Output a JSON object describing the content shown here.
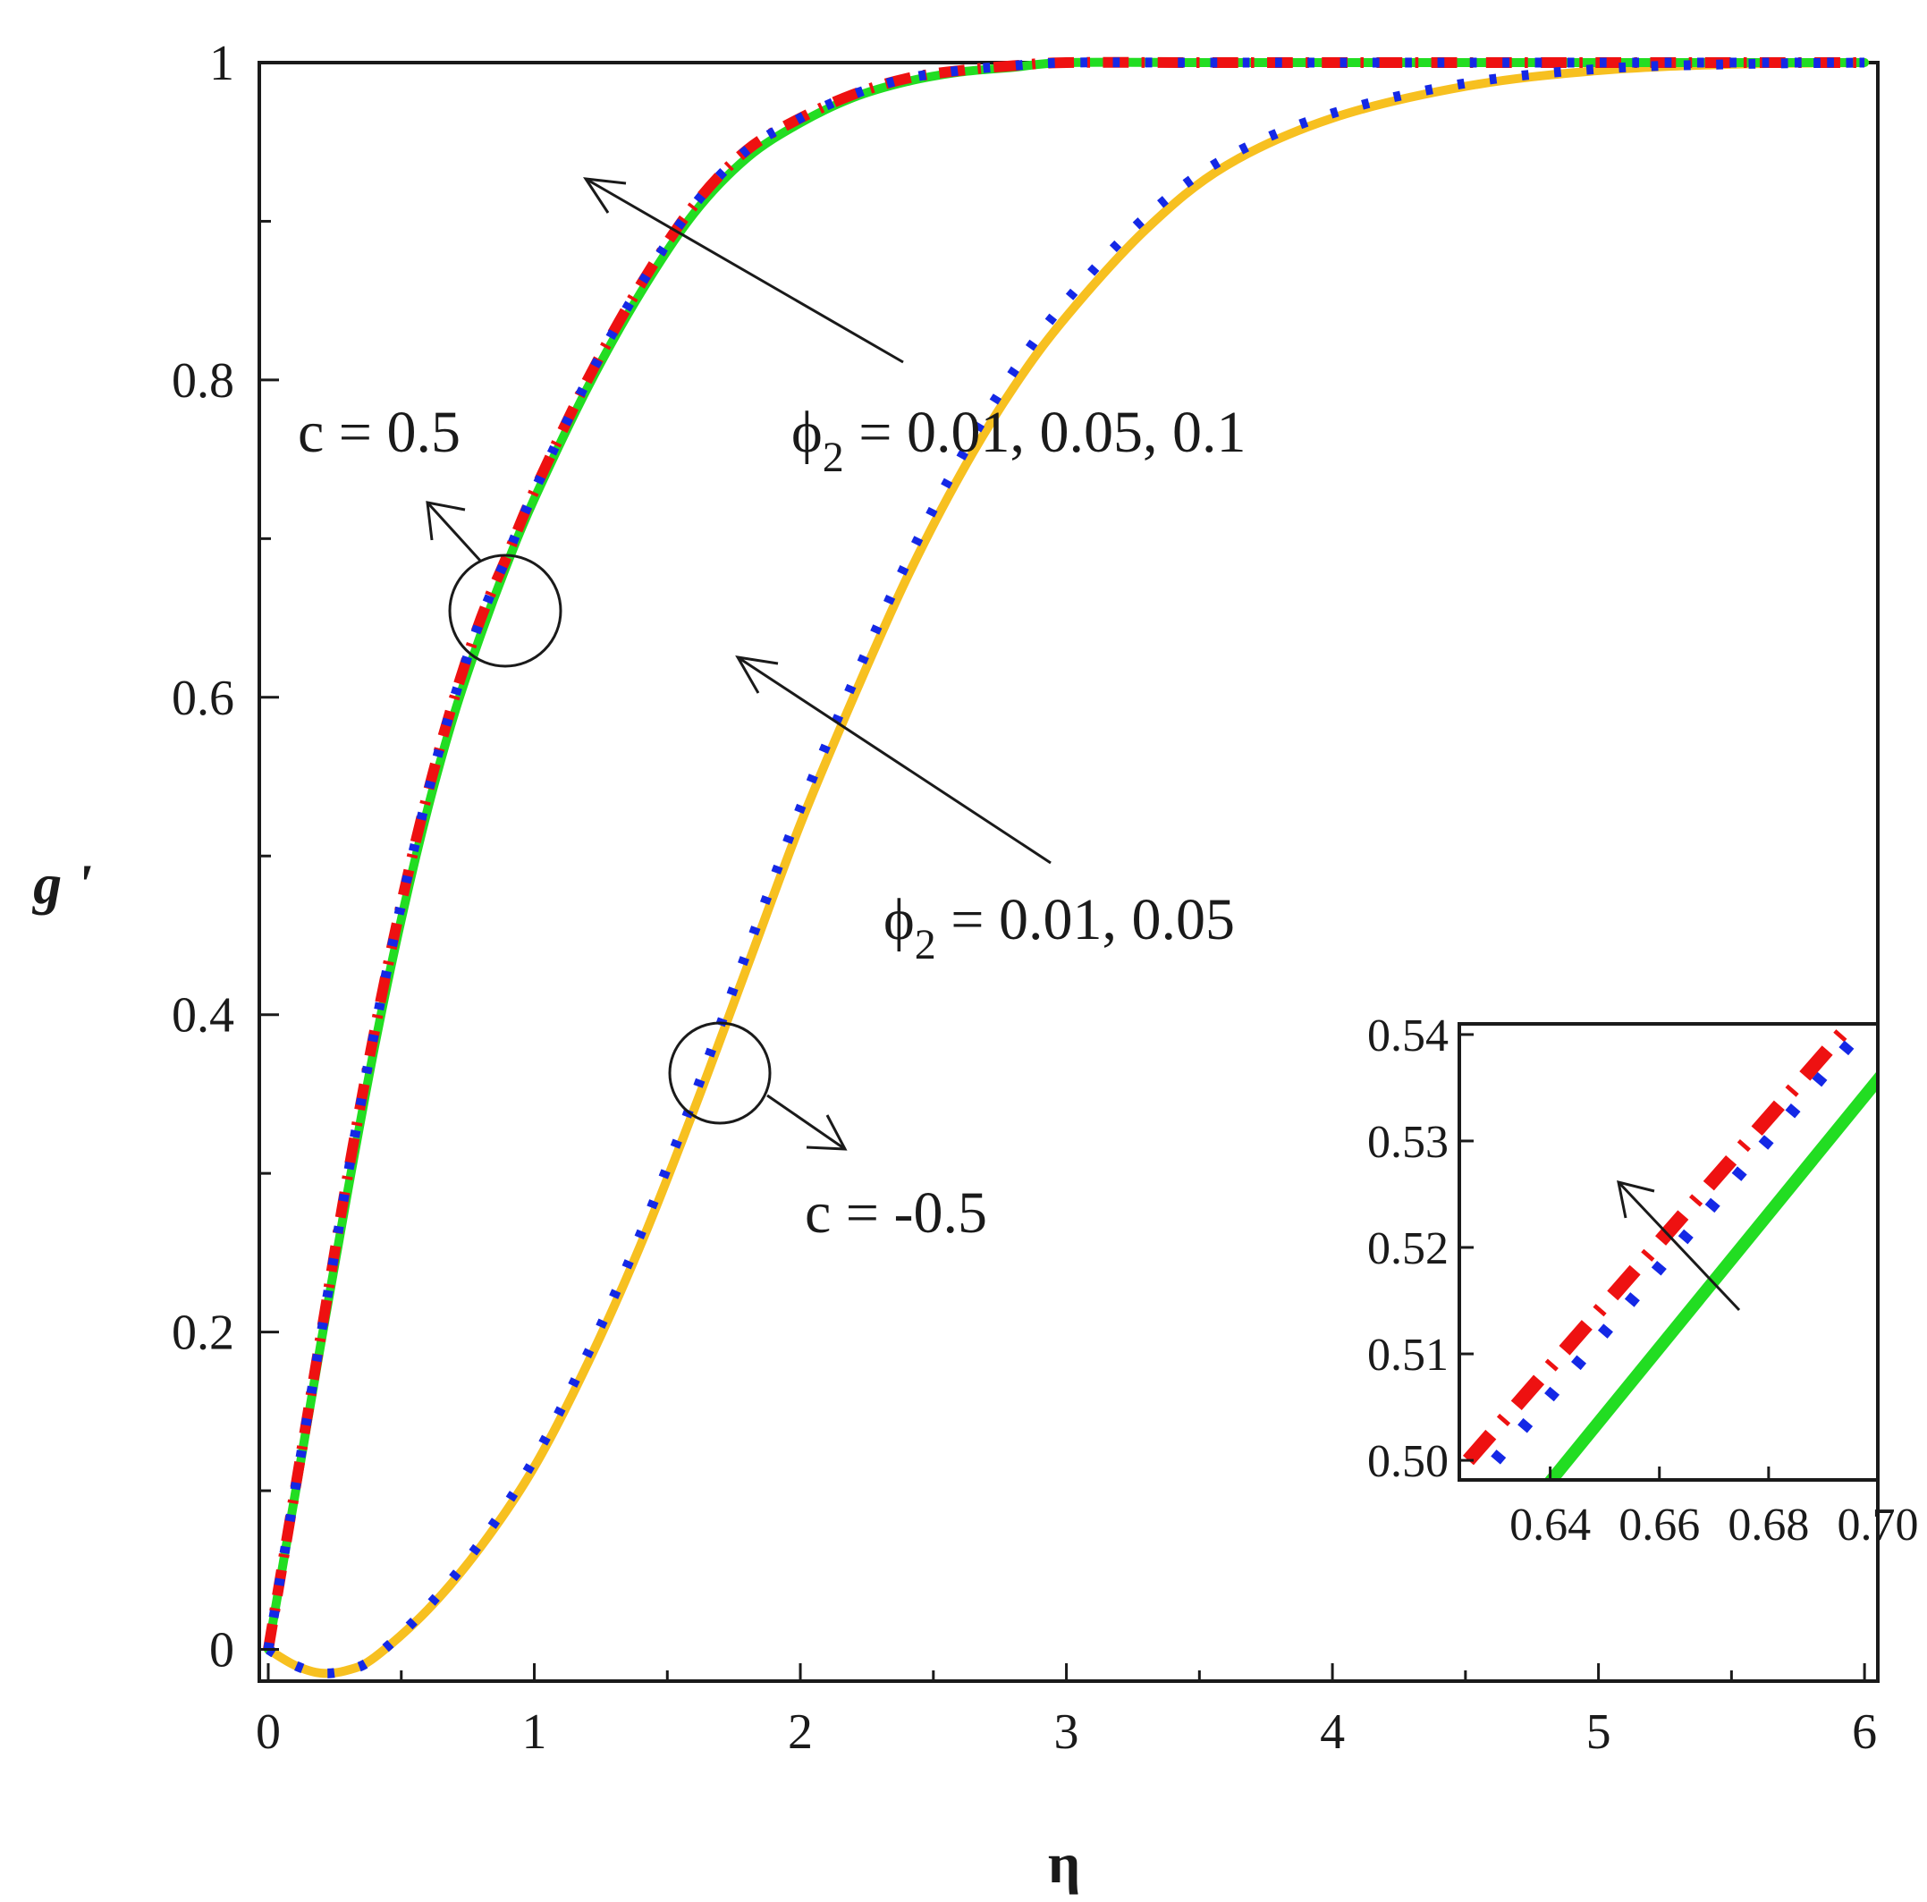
{
  "chart_data": {
    "type": "line",
    "title": "",
    "xlabel": "η",
    "ylabel": "g '",
    "xlim": [
      0,
      6.05
    ],
    "ylim": [
      -0.02,
      1.0
    ],
    "xticks": [
      "0",
      "1",
      "2",
      "3",
      "4",
      "5",
      "6"
    ],
    "yticks": [
      "0",
      "0.2",
      "0.4",
      "0.6",
      "0.8",
      "1"
    ],
    "grid": false,
    "colors": {
      "red": "#ee1111",
      "blue": "#1428e6",
      "green": "#22dd22",
      "yellow": "#f7c020",
      "black": "#1a1a1a"
    },
    "series": [
      {
        "group": "c = 0.5",
        "color": "#ee1111",
        "style": "dashdot",
        "x": [
          0,
          0.1,
          0.2,
          0.3,
          0.4,
          0.5,
          0.6,
          0.7,
          0.8,
          0.9,
          1.0,
          1.2,
          1.4,
          1.6,
          1.8,
          2.0,
          2.2,
          2.4,
          2.6,
          2.8,
          3.0,
          3.5,
          4.0,
          5.0,
          6.0
        ],
        "y": [
          0,
          0.1,
          0.2,
          0.3,
          0.39,
          0.47,
          0.54,
          0.6,
          0.65,
          0.69,
          0.73,
          0.8,
          0.86,
          0.91,
          0.945,
          0.965,
          0.98,
          0.99,
          0.995,
          0.998,
          1.0,
          1.0,
          1.0,
          1.0,
          1.0
        ]
      },
      {
        "group": "c = 0.5",
        "color": "#1428e6",
        "style": "dotted",
        "x": [
          0,
          0.1,
          0.2,
          0.3,
          0.4,
          0.5,
          0.6,
          0.7,
          0.8,
          0.9,
          1.0,
          1.2,
          1.4,
          1.6,
          1.8,
          2.0,
          2.2,
          2.4,
          2.6,
          2.8,
          3.0,
          3.5,
          4.0,
          5.0,
          6.0
        ],
        "y": [
          0,
          0.1,
          0.2,
          0.3,
          0.39,
          0.47,
          0.54,
          0.6,
          0.65,
          0.69,
          0.73,
          0.8,
          0.86,
          0.91,
          0.945,
          0.965,
          0.98,
          0.99,
          0.995,
          0.998,
          1.0,
          1.0,
          1.0,
          1.0,
          1.0
        ]
      },
      {
        "group": "c = 0.5",
        "color": "#22dd22",
        "style": "solid",
        "x": [
          0,
          0.1,
          0.2,
          0.3,
          0.4,
          0.5,
          0.6,
          0.7,
          0.8,
          0.9,
          1.0,
          1.2,
          1.4,
          1.6,
          1.8,
          2.0,
          2.2,
          2.4,
          2.6,
          2.8,
          3.0,
          3.5,
          4.0,
          5.0,
          6.0
        ],
        "y": [
          0,
          0.097,
          0.195,
          0.29,
          0.38,
          0.46,
          0.53,
          0.59,
          0.64,
          0.685,
          0.725,
          0.795,
          0.855,
          0.905,
          0.94,
          0.962,
          0.978,
          0.988,
          0.994,
          0.997,
          1.0,
          1.0,
          1.0,
          1.0,
          1.0
        ]
      },
      {
        "group": "c = -0.5",
        "color": "#f7c020",
        "style": "solid",
        "x": [
          0,
          0.1,
          0.2,
          0.3,
          0.4,
          0.6,
          0.8,
          1.0,
          1.2,
          1.4,
          1.6,
          1.8,
          2.0,
          2.2,
          2.4,
          2.6,
          2.8,
          3.0,
          3.3,
          3.6,
          4.0,
          4.5,
          5.0,
          5.5,
          6.0
        ],
        "y": [
          0,
          -0.01,
          -0.015,
          -0.013,
          -0.005,
          0.025,
          0.065,
          0.115,
          0.18,
          0.255,
          0.34,
          0.43,
          0.52,
          0.6,
          0.675,
          0.74,
          0.795,
          0.84,
          0.895,
          0.935,
          0.965,
          0.985,
          0.995,
          0.999,
          1.0
        ]
      },
      {
        "group": "c = -0.5",
        "color": "#1428e6",
        "style": "dotted",
        "x": [
          0,
          0.1,
          0.2,
          0.3,
          0.4,
          0.6,
          0.8,
          1.0,
          1.2,
          1.4,
          1.6,
          1.8,
          2.0,
          2.2,
          2.4,
          2.6,
          2.8,
          3.0,
          3.3,
          3.6,
          4.0,
          4.5,
          5.0,
          5.5,
          6.0
        ],
        "y": [
          0,
          -0.01,
          -0.015,
          -0.013,
          -0.005,
          0.027,
          0.068,
          0.12,
          0.186,
          0.262,
          0.348,
          0.44,
          0.53,
          0.61,
          0.685,
          0.75,
          0.805,
          0.85,
          0.903,
          0.94,
          0.968,
          0.987,
          0.996,
          0.999,
          1.0
        ]
      }
    ],
    "annotations": [
      {
        "id": "phi-upper",
        "text": "ϕ",
        "sub": "2",
        "rest": " = 0.01, 0.05, 0.1"
      },
      {
        "id": "phi-lower",
        "text": "ϕ",
        "sub": "2",
        "rest": " = 0.01, 0.05"
      },
      {
        "id": "c-pos",
        "text": "c = 0.5"
      },
      {
        "id": "c-neg",
        "text": "c = -0.5"
      }
    ],
    "inset": {
      "xlim": [
        0.625,
        0.7
      ],
      "ylim": [
        0.499,
        0.541
      ],
      "xticks": [
        "0.64",
        "0.66",
        "0.68",
        "0.70"
      ],
      "yticks": [
        "0.50",
        "0.51",
        "0.52",
        "0.53",
        "0.54"
      ],
      "series": [
        {
          "color": "#ee1111",
          "style": "dashdot",
          "x": [
            0.625,
            0.695
          ],
          "y": [
            0.5,
            0.541
          ]
        },
        {
          "color": "#1428e6",
          "style": "dotted",
          "x": [
            0.63,
            0.698
          ],
          "y": [
            0.5,
            0.541
          ]
        },
        {
          "color": "#22dd22",
          "style": "solid",
          "x": [
            0.64,
            0.702
          ],
          "y": [
            0.498,
            0.537
          ]
        }
      ]
    }
  }
}
